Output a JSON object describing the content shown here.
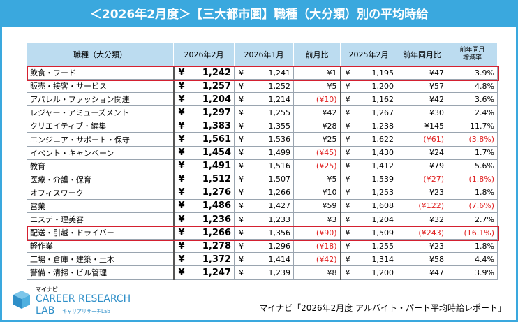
{
  "header": {
    "title": "＜2026年2月度＞【三大都市圏】職種（大分類）別の平均時給"
  },
  "table": {
    "columns": [
      "職種（大分類）",
      "2026年2月",
      "2026年1月",
      "前月比",
      "2025年2月",
      "前年同月比",
      [
        "前年同月",
        "増減率"
      ]
    ],
    "currency_symbol": "¥",
    "highlighted_rows": [
      0,
      12
    ],
    "rows": [
      [
        "飲食・フード",
        "1,242",
        "1,241",
        "¥1",
        "1,195",
        "¥47",
        "3.9%"
      ],
      [
        "販売・接客・サービス",
        "1,257",
        "1,252",
        "¥5",
        "1,200",
        "¥57",
        "4.8%"
      ],
      [
        "アパレル・ファッション関連",
        "1,204",
        "1,214",
        "(¥10)",
        "1,162",
        "¥42",
        "3.6%"
      ],
      [
        "レジャー・アミューズメント",
        "1,297",
        "1,255",
        "¥42",
        "1,267",
        "¥30",
        "2.4%"
      ],
      [
        "クリエイティブ・編集",
        "1,383",
        "1,355",
        "¥28",
        "1,238",
        "¥145",
        "11.7%"
      ],
      [
        "エンジニア・サポート・保守",
        "1,561",
        "1,536",
        "¥25",
        "1,622",
        "(¥61)",
        "(3.8%)"
      ],
      [
        "イベント・キャンペーン",
        "1,454",
        "1,499",
        "(¥45)",
        "1,430",
        "¥24",
        "1.7%"
      ],
      [
        "教育",
        "1,491",
        "1,516",
        "(¥25)",
        "1,412",
        "¥79",
        "5.6%"
      ],
      [
        "医療・介護・保育",
        "1,512",
        "1,507",
        "¥5",
        "1,539",
        "(¥27)",
        "(1.8%)"
      ],
      [
        "オフィスワーク",
        "1,276",
        "1,266",
        "¥10",
        "1,253",
        "¥23",
        "1.8%"
      ],
      [
        "営業",
        "1,486",
        "1,427",
        "¥59",
        "1,608",
        "(¥122)",
        "(7.6%)"
      ],
      [
        "エステ・理美容",
        "1,236",
        "1,233",
        "¥3",
        "1,204",
        "¥32",
        "2.7%"
      ],
      [
        "配送・引越・ドライバー",
        "1,266",
        "1,356",
        "(¥90)",
        "1,509",
        "(¥243)",
        "(16.1%)"
      ],
      [
        "軽作業",
        "1,278",
        "1,296",
        "(¥18)",
        "1,255",
        "¥23",
        "1.8%"
      ],
      [
        "工場・倉庫・建築・土木",
        "1,372",
        "1,414",
        "(¥42)",
        "1,314",
        "¥58",
        "4.4%"
      ],
      [
        "警備・清掃・ビル管理",
        "1,247",
        "1,239",
        "¥8",
        "1,200",
        "¥47",
        "3.9%"
      ]
    ]
  },
  "footer": {
    "logo": {
      "brand": "マイナビ",
      "line1": "CAREER RESEARCH",
      "line2": "LAB",
      "sub": "キャリアリサーチLab"
    },
    "source": "マイナビ「2026年2月度 アルバイト・パート平均時給レポート」"
  }
}
